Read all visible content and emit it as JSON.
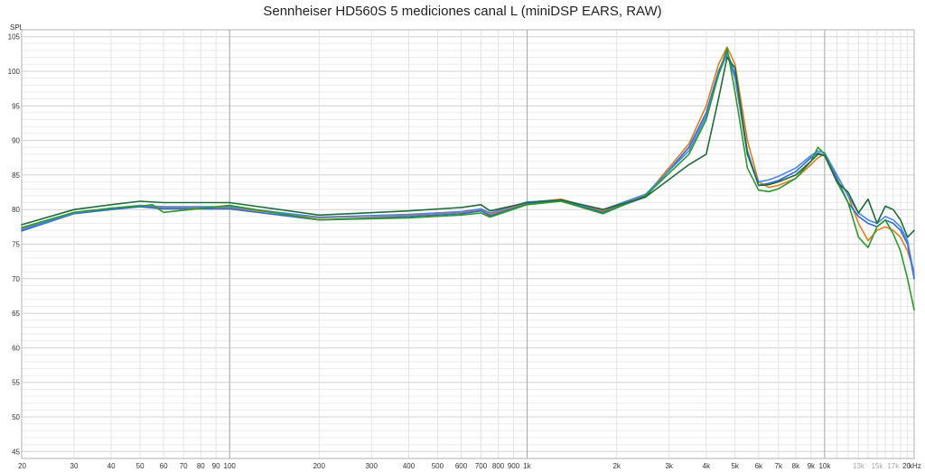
{
  "chart_data": {
    "type": "line",
    "title": "Sennheiser HD560S 5 mediciones canal L (miniDSP EARS, RAW)",
    "ylabel": "SPL",
    "xunit": "kHz",
    "xscale": "log",
    "xlim": [
      20,
      20000
    ],
    "ylim": [
      44,
      106
    ],
    "grid": true,
    "yticks": [
      {
        "v": 105,
        "t": "105"
      },
      {
        "v": 100,
        "t": "100"
      },
      {
        "v": 95,
        "t": "95"
      },
      {
        "v": 90,
        "t": "90"
      },
      {
        "v": 85,
        "t": "85"
      },
      {
        "v": 80,
        "t": "80"
      },
      {
        "v": 75,
        "t": "75"
      },
      {
        "v": 70,
        "t": "70"
      },
      {
        "v": 65,
        "t": "65"
      },
      {
        "v": 60,
        "t": "60"
      },
      {
        "v": 55,
        "t": "55"
      },
      {
        "v": 50,
        "t": "50"
      },
      {
        "v": 45,
        "t": "45"
      }
    ],
    "xticks": [
      {
        "v": 20,
        "t": "20"
      },
      {
        "v": 30,
        "t": "30"
      },
      {
        "v": 40,
        "t": "40"
      },
      {
        "v": 50,
        "t": "50"
      },
      {
        "v": 60,
        "t": "60"
      },
      {
        "v": 70,
        "t": "70"
      },
      {
        "v": 80,
        "t": "80"
      },
      {
        "v": 90,
        "t": "90"
      },
      {
        "v": 100,
        "t": "100"
      },
      {
        "v": 200,
        "t": "200"
      },
      {
        "v": 300,
        "t": "300"
      },
      {
        "v": 400,
        "t": "400"
      },
      {
        "v": 500,
        "t": "500"
      },
      {
        "v": 600,
        "t": "600"
      },
      {
        "v": 700,
        "t": "700"
      },
      {
        "v": 800,
        "t": "800"
      },
      {
        "v": 900,
        "t": "900"
      },
      {
        "v": 1000,
        "t": "1k"
      },
      {
        "v": 2000,
        "t": "2k"
      },
      {
        "v": 3000,
        "t": "3k"
      },
      {
        "v": 4000,
        "t": "4k"
      },
      {
        "v": 5000,
        "t": "5k"
      },
      {
        "v": 6000,
        "t": "6k"
      },
      {
        "v": 7000,
        "t": "7k"
      },
      {
        "v": 8000,
        "t": "8k"
      },
      {
        "v": 9000,
        "t": "9k"
      },
      {
        "v": 10000,
        "t": "10k"
      },
      {
        "v": 13000,
        "t": "13k",
        "faint": true
      },
      {
        "v": 15000,
        "t": "15k",
        "faint": true
      },
      {
        "v": 17000,
        "t": "17k",
        "faint": true
      },
      {
        "v": 20000,
        "t": "20"
      }
    ],
    "series": [
      {
        "color": "#e07b20",
        "x": [
          20,
          30,
          40,
          50,
          60,
          100,
          200,
          400,
          600,
          700,
          750,
          1000,
          1300,
          1800,
          2500,
          3500,
          4000,
          4400,
          4700,
          5000,
          5500,
          6000,
          6500,
          7000,
          8000,
          9000,
          9500,
          10000,
          11000,
          12000,
          13000,
          14000,
          15000,
          16000,
          17000,
          18000,
          19000,
          20000
        ],
        "y": [
          77.2,
          79.6,
          80.1,
          80.5,
          80.3,
          80.3,
          78.8,
          79.2,
          79.6,
          80.0,
          79.3,
          81.0,
          81.5,
          79.8,
          82.0,
          89.5,
          95.0,
          101.0,
          103.5,
          101.0,
          90.0,
          84.0,
          83.2,
          83.5,
          84.5,
          86.5,
          87.5,
          88.0,
          85.0,
          82.0,
          78.0,
          75.5,
          77.0,
          77.5,
          77.0,
          76.0,
          74.0,
          71.0
        ]
      },
      {
        "color": "#2f6bcf",
        "x": [
          20,
          30,
          40,
          50,
          60,
          100,
          200,
          400,
          600,
          700,
          750,
          1000,
          1300,
          1800,
          2500,
          3500,
          4000,
          4400,
          4700,
          5000,
          5500,
          6000,
          6500,
          7000,
          8000,
          9000,
          9500,
          10000,
          11000,
          12000,
          13000,
          14000,
          15000,
          16000,
          17000,
          18000,
          19000,
          20000
        ],
        "y": [
          76.9,
          79.4,
          80.0,
          80.4,
          80.1,
          80.1,
          78.5,
          79.0,
          79.4,
          79.8,
          79.1,
          80.8,
          81.3,
          79.6,
          81.8,
          89.0,
          94.0,
          100.0,
          102.8,
          99.5,
          88.5,
          83.5,
          83.8,
          84.2,
          85.5,
          87.5,
          88.2,
          87.8,
          84.5,
          81.0,
          79.0,
          78.0,
          77.5,
          78.5,
          78.0,
          77.0,
          75.0,
          70.0
        ]
      },
      {
        "color": "#4a86e0",
        "x": [
          20,
          30,
          40,
          50,
          60,
          100,
          200,
          400,
          600,
          700,
          750,
          1000,
          1300,
          1800,
          2500,
          3500,
          4000,
          4400,
          4700,
          5000,
          5500,
          6000,
          6500,
          7000,
          8000,
          9000,
          9500,
          10000,
          11000,
          12000,
          13000,
          14000,
          15000,
          16000,
          17000,
          18000,
          19000,
          20000
        ],
        "y": [
          77.1,
          79.5,
          80.2,
          80.6,
          80.4,
          80.4,
          78.9,
          79.3,
          79.7,
          80.1,
          79.5,
          81.1,
          81.4,
          80.0,
          82.2,
          88.5,
          93.5,
          99.5,
          102.5,
          99.0,
          88.0,
          84.0,
          84.3,
          84.8,
          86.0,
          87.8,
          88.5,
          88.2,
          85.0,
          82.0,
          79.5,
          78.5,
          78.0,
          79.0,
          78.5,
          77.5,
          75.5,
          70.5
        ]
      },
      {
        "color": "#2a9a2a",
        "x": [
          20,
          30,
          40,
          50,
          55,
          60,
          100,
          200,
          400,
          600,
          700,
          750,
          1000,
          1300,
          1800,
          2500,
          3500,
          4000,
          4400,
          4700,
          5000,
          5500,
          6000,
          6500,
          7000,
          8000,
          9000,
          9500,
          10000,
          11000,
          12000,
          13000,
          14000,
          15000,
          16000,
          17000,
          18000,
          19000,
          20000
        ],
        "y": [
          77.4,
          79.6,
          80.2,
          80.5,
          80.7,
          79.6,
          80.6,
          78.5,
          78.8,
          79.2,
          79.5,
          78.9,
          80.7,
          81.2,
          79.4,
          82.0,
          88.0,
          93.0,
          99.5,
          103.3,
          97.0,
          86.0,
          82.8,
          82.6,
          83.0,
          84.5,
          87.0,
          89.0,
          88.0,
          84.0,
          81.0,
          76.0,
          74.5,
          77.5,
          78.5,
          76.5,
          74.0,
          70.0,
          65.5
        ]
      },
      {
        "color": "#1f6b3a",
        "x": [
          20,
          30,
          40,
          50,
          60,
          100,
          200,
          400,
          600,
          700,
          750,
          1000,
          1300,
          1800,
          2500,
          3500,
          4000,
          4400,
          4700,
          5000,
          5500,
          6000,
          6500,
          7000,
          8000,
          9000,
          9500,
          10000,
          11000,
          12000,
          13000,
          14000,
          15000,
          16000,
          17000,
          18000,
          19000,
          20000
        ],
        "y": [
          77.8,
          80.0,
          80.7,
          81.2,
          81.0,
          81.0,
          79.2,
          79.8,
          80.3,
          80.7,
          79.8,
          81.0,
          81.4,
          80.0,
          81.8,
          86.5,
          88.0,
          96.0,
          102.0,
          100.5,
          88.0,
          83.5,
          83.6,
          84.0,
          85.0,
          87.0,
          88.0,
          87.8,
          84.0,
          82.5,
          79.5,
          81.5,
          78.0,
          80.5,
          80.0,
          78.5,
          76.0,
          77.0
        ]
      }
    ]
  }
}
